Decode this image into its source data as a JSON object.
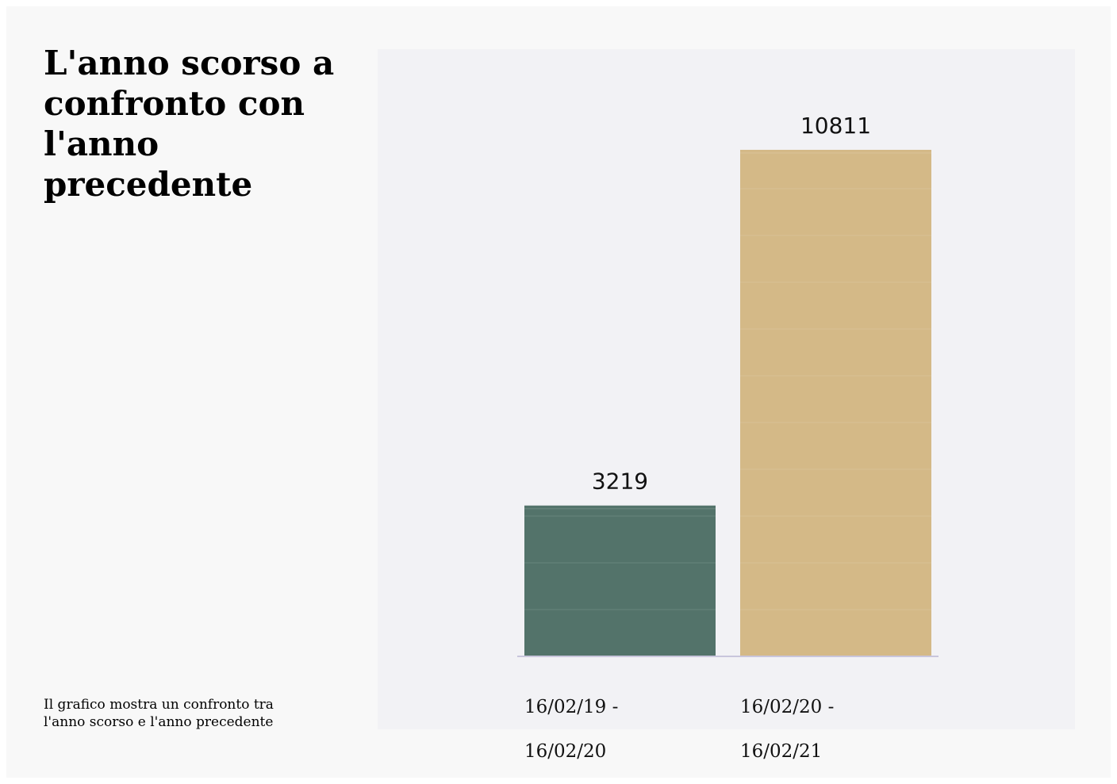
{
  "title": "L'anno scorso a confronto con l'anno precedente",
  "caption": "Il grafico mostra un confronto tra l'anno scorso e l'anno precedente",
  "chart_data": {
    "type": "bar",
    "title": "L'anno scorso a confronto con l'anno precedente",
    "categories": [
      "16/02/19 - 16/02/20",
      "16/02/20 - 16/02/21"
    ],
    "tick_labels": [
      {
        "line1": "16/02/19 -",
        "line2": "16/02/20"
      },
      {
        "line1": "16/02/20 -",
        "line2": "16/02/21"
      }
    ],
    "values": [
      3219,
      10811
    ],
    "data_labels": [
      "3219",
      "10811"
    ],
    "colors": [
      "#53736a",
      "#d4b987"
    ],
    "xlabel": "",
    "ylabel": "",
    "ylim": [
      0,
      10811
    ],
    "grid": false,
    "legend": "none"
  }
}
